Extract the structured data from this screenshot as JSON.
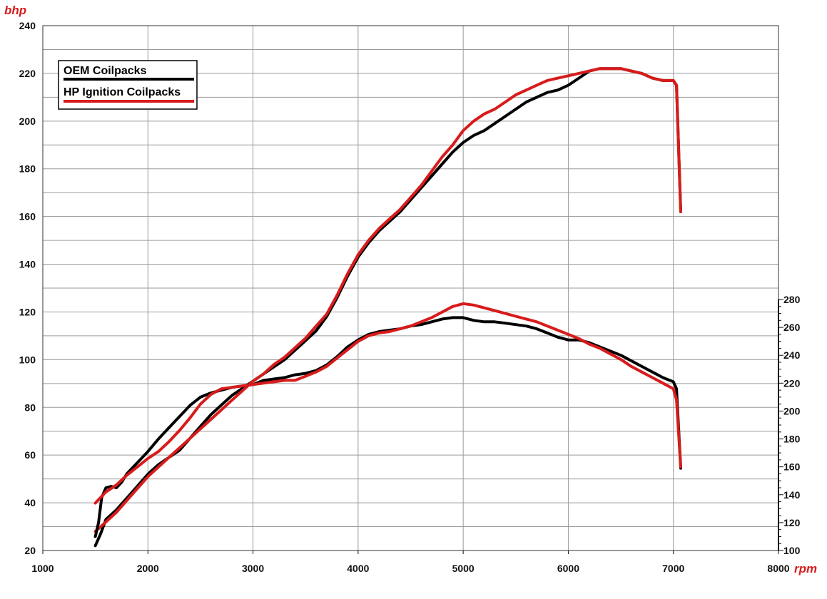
{
  "chart_data": {
    "type": "line",
    "x_unit_label": "rpm",
    "y_unit_label": "bhp",
    "xlim": [
      1000,
      8000
    ],
    "x_ticks": [
      1000,
      2000,
      3000,
      4000,
      5000,
      6000,
      7000,
      8000
    ],
    "ylim": [
      20,
      240
    ],
    "y_ticks": [
      20,
      40,
      60,
      80,
      100,
      120,
      140,
      160,
      180,
      200,
      220,
      240
    ],
    "y2lim": [
      100,
      280
    ],
    "y2_ticks": [
      100,
      120,
      140,
      160,
      180,
      200,
      220,
      240,
      260,
      280
    ],
    "grid": true,
    "legend_position": "top-left",
    "colors": {
      "oem": "#000000",
      "hp": "#d81b1b",
      "unit_text": "#d81b1b",
      "grid": "#9a9a9a"
    },
    "series": [
      {
        "name": "OEM Coilpacks",
        "axis": "left",
        "color": "#000000",
        "x": [
          1500,
          1550,
          1600,
          1700,
          1800,
          1900,
          2000,
          2100,
          2200,
          2300,
          2400,
          2500,
          2600,
          2700,
          2800,
          2900,
          3000,
          3100,
          3200,
          3300,
          3400,
          3500,
          3600,
          3700,
          3800,
          3900,
          4000,
          4100,
          4200,
          4300,
          4400,
          4500,
          4600,
          4700,
          4800,
          4900,
          5000,
          5100,
          5200,
          5300,
          5400,
          5500,
          5600,
          5700,
          5800,
          5900,
          6000,
          6100,
          6200,
          6300,
          6400,
          6500,
          6600,
          6700,
          6800,
          6900,
          7000,
          7030,
          7070
        ],
        "values": [
          22,
          27,
          33,
          37,
          42,
          47,
          52,
          56,
          59,
          62,
          67,
          72,
          77,
          81,
          85,
          88,
          91,
          94,
          97,
          100,
          104,
          108,
          112,
          118,
          126,
          135,
          143,
          149,
          154,
          158,
          162,
          167,
          172,
          177,
          182,
          187,
          191,
          194,
          196,
          199,
          202,
          205,
          208,
          210,
          212,
          213,
          215,
          218,
          221,
          222,
          222,
          222,
          221,
          220,
          218,
          217,
          217,
          215,
          162
        ]
      },
      {
        "name": "HP Ignition Coilpacks",
        "axis": "left",
        "color": "#d81b1b",
        "x": [
          1500,
          1600,
          1700,
          1800,
          1900,
          2000,
          2100,
          2200,
          2300,
          2400,
          2500,
          2600,
          2700,
          2800,
          2900,
          3000,
          3100,
          3200,
          3300,
          3400,
          3500,
          3600,
          3700,
          3800,
          3900,
          4000,
          4100,
          4200,
          4300,
          4400,
          4500,
          4600,
          4700,
          4800,
          4900,
          5000,
          5100,
          5200,
          5300,
          5400,
          5500,
          5600,
          5700,
          5800,
          5900,
          6000,
          6100,
          6200,
          6300,
          6400,
          6500,
          6600,
          6700,
          6800,
          6900,
          7000,
          7030,
          7070
        ],
        "values": [
          28,
          32,
          36,
          41,
          46,
          51,
          55,
          59,
          63,
          67,
          71,
          75,
          79,
          83,
          87,
          91,
          94,
          98,
          101,
          105,
          109,
          114,
          119,
          127,
          136,
          144,
          150,
          155,
          159,
          163,
          168,
          173,
          179,
          185,
          190,
          196,
          200,
          203,
          205,
          208,
          211,
          213,
          215,
          217,
          218,
          219,
          220,
          221,
          222,
          222,
          222,
          221,
          220,
          218,
          217,
          217,
          215,
          162
        ]
      },
      {
        "name": "OEM Coilpacks",
        "axis": "right",
        "color": "#000000",
        "x": [
          1500,
          1530,
          1560,
          1600,
          1650,
          1700,
          1750,
          1800,
          1900,
          2000,
          2100,
          2200,
          2300,
          2400,
          2500,
          2600,
          2700,
          2800,
          2900,
          3000,
          3100,
          3200,
          3300,
          3400,
          3500,
          3600,
          3700,
          3800,
          3900,
          4000,
          4100,
          4200,
          4300,
          4400,
          4500,
          4600,
          4700,
          4800,
          4900,
          5000,
          5100,
          5200,
          5300,
          5400,
          5500,
          5600,
          5700,
          5800,
          5900,
          6000,
          6100,
          6200,
          6300,
          6400,
          6500,
          6600,
          6700,
          6800,
          6900,
          7000,
          7030,
          7070
        ],
        "values": [
          110,
          120,
          138,
          145,
          146,
          145,
          149,
          155,
          163,
          171,
          180,
          188,
          196,
          204,
          210,
          213,
          215,
          217,
          218,
          219,
          222,
          223,
          224,
          226,
          227,
          229,
          233,
          239,
          246,
          251,
          255,
          257,
          258,
          259,
          261,
          262,
          264,
          266,
          267,
          267,
          265,
          264,
          264,
          263,
          262,
          261,
          259,
          256,
          253,
          251,
          251,
          249,
          246,
          243,
          240,
          236,
          232,
          228,
          224,
          221,
          216,
          159
        ]
      },
      {
        "name": "HP Ignition Coilpacks",
        "axis": "right",
        "color": "#d81b1b",
        "x": [
          1500,
          1600,
          1700,
          1800,
          1900,
          2000,
          2100,
          2200,
          2300,
          2400,
          2500,
          2600,
          2700,
          2800,
          2900,
          3000,
          3100,
          3200,
          3300,
          3400,
          3500,
          3600,
          3700,
          3800,
          3900,
          4000,
          4100,
          4200,
          4300,
          4400,
          4500,
          4600,
          4700,
          4800,
          4900,
          5000,
          5100,
          5200,
          5300,
          5400,
          5500,
          5600,
          5700,
          5800,
          5900,
          6000,
          6100,
          6200,
          6300,
          6400,
          6500,
          6600,
          6700,
          6800,
          6900,
          7000,
          7030,
          7070
        ],
        "values": [
          134,
          142,
          147,
          154,
          160,
          166,
          171,
          178,
          186,
          195,
          205,
          212,
          216,
          217,
          218,
          219,
          220,
          221,
          222,
          222,
          225,
          228,
          232,
          238,
          244,
          250,
          254,
          256,
          257,
          259,
          261,
          264,
          267,
          271,
          275,
          277,
          276,
          274,
          272,
          270,
          268,
          266,
          264,
          261,
          258,
          255,
          252,
          248,
          245,
          241,
          237,
          232,
          228,
          224,
          220,
          216,
          208,
          160
        ]
      }
    ]
  }
}
